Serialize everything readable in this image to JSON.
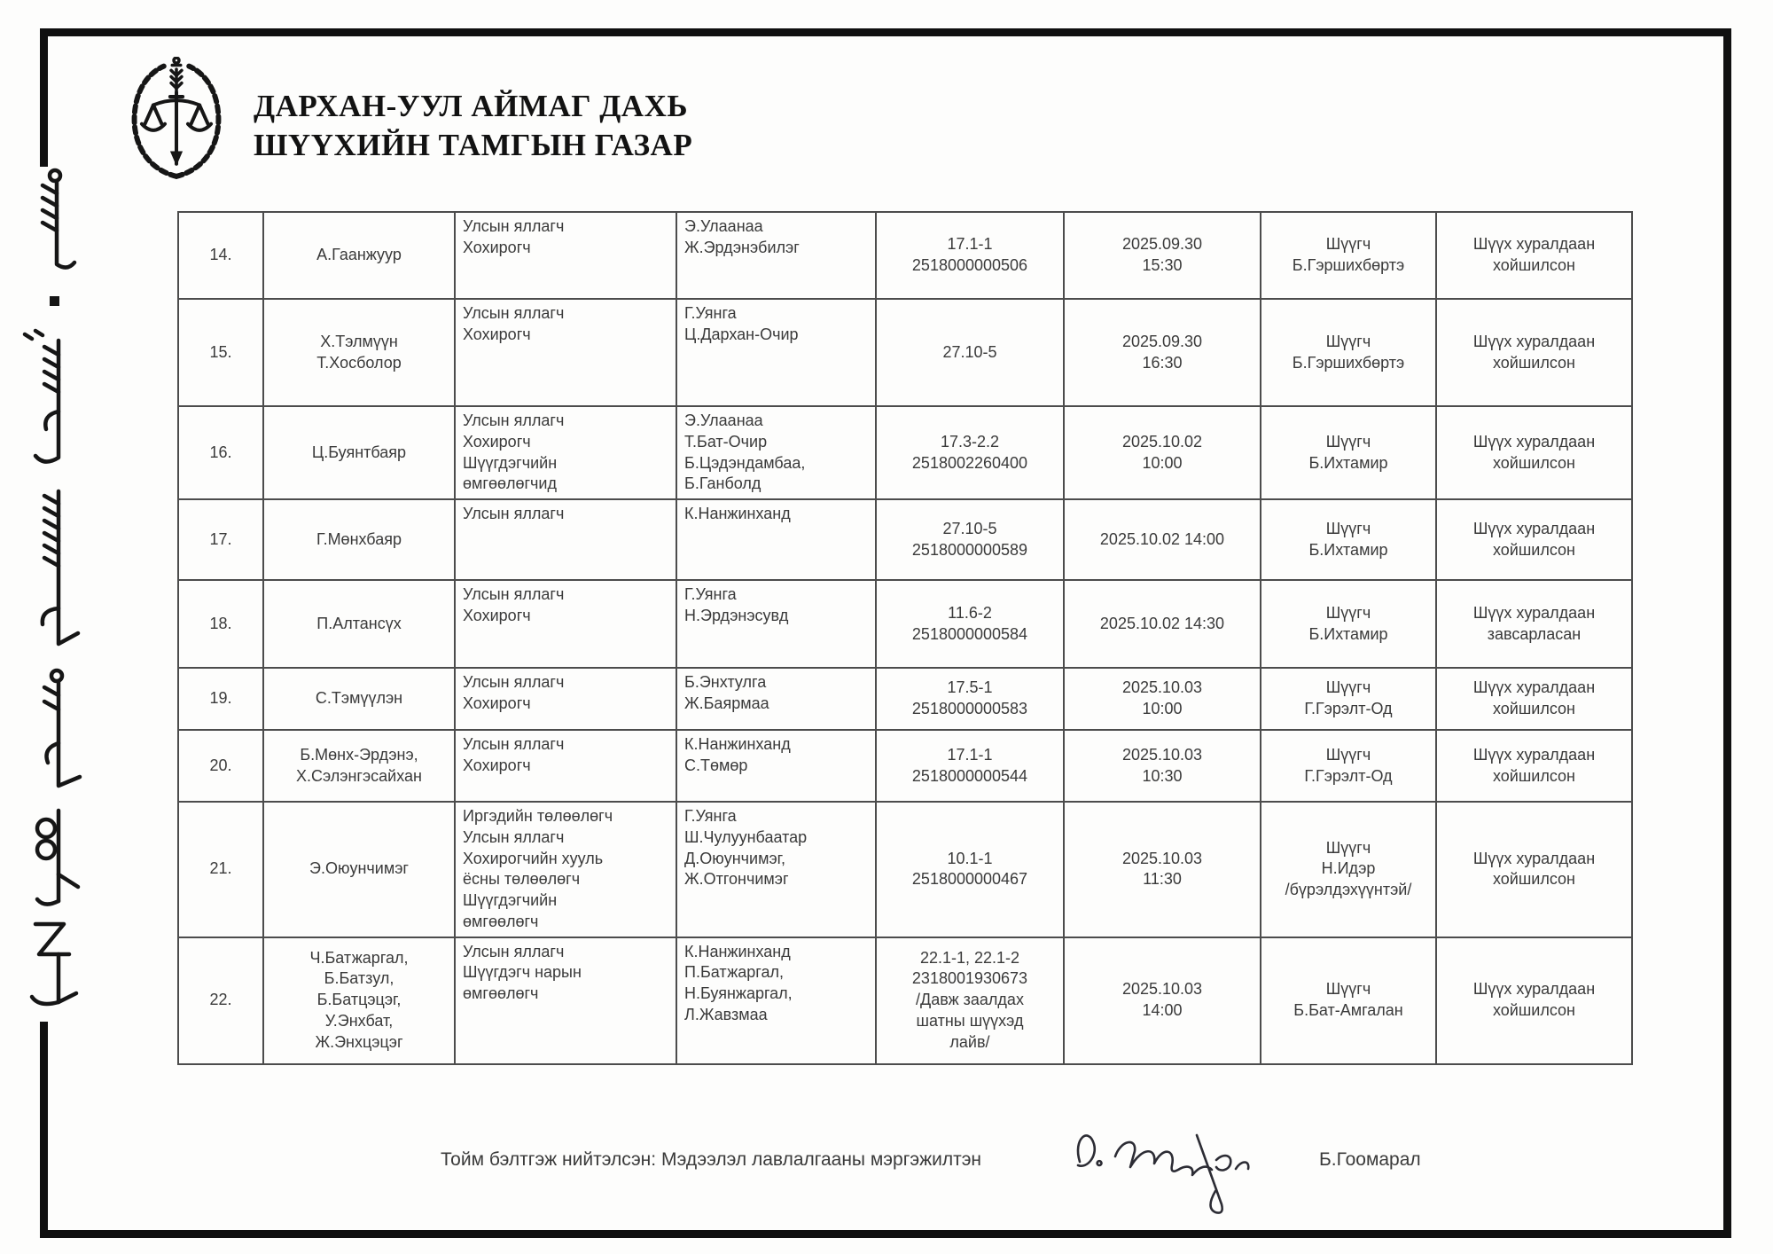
{
  "document": {
    "organization": {
      "line1": "ДАРХАН-УУЛ АЙМАГ ДАХЬ",
      "line2": "ШҮҮХИЙН ТАМГЫН ГАЗАР"
    }
  },
  "table": {
    "rows": [
      {
        "no": "14.",
        "defendants": "А.Гаанжуур",
        "roles": "Улсын яллагч\nХохирогч",
        "participants": "Э.Улаанаа\nЖ.Эрдэнэбилэг",
        "case_info": "17.1-1\n2518000000506",
        "datetime": "2025.09.30\n15:30",
        "judge": "Шүүгч\nБ.Гэршихбөртэ",
        "result": "Шүүх хуралдаан\nхойшилсон"
      },
      {
        "no": "15.",
        "defendants": "Х.Тэлмүүн\nТ.Хосболор",
        "roles": "Улсын яллагч\nХохирогч",
        "participants": "Г.Уянга\nЦ.Дархан-Очир",
        "case_info": "27.10-5",
        "datetime": "2025.09.30\n16:30",
        "judge": "Шүүгч\nБ.Гэршихбөртэ",
        "result": "Шүүх хуралдаан\nхойшилсон"
      },
      {
        "no": "16.",
        "defendants": "Ц.Буянтбаяр",
        "roles": "Улсын яллагч\nХохирогч\nШүүгдэгчийн\nөмгөөлөгчид",
        "participants": "Э.Улаанаа\nТ.Бат-Очир\nБ.Цэдэндамбаа,\nБ.Ганболд",
        "case_info": "17.3-2.2\n2518002260400",
        "datetime": "2025.10.02\n10:00",
        "judge": "Шүүгч\nБ.Ихтамир",
        "result": "Шүүх хуралдаан\nхойшилсон"
      },
      {
        "no": "17.",
        "defendants": "Г.Мөнхбаяр",
        "roles": "Улсын яллагч",
        "participants": "К.Нанжинханд",
        "case_info": "27.10-5\n2518000000589",
        "datetime": "2025.10.02 14:00",
        "judge": "Шүүгч\nБ.Ихтамир",
        "result": "Шүүх хуралдаан\nхойшилсон"
      },
      {
        "no": "18.",
        "defendants": "П.Алтансүх",
        "roles": "Улсын яллагч\nХохирогч",
        "participants": "Г.Уянга\nН.Эрдэнэсувд",
        "case_info": "11.6-2\n2518000000584",
        "datetime": "2025.10.02 14:30",
        "judge": "Шүүгч\nБ.Ихтамир",
        "result": "Шүүх хуралдаан\nзавсарласан"
      },
      {
        "no": "19.",
        "defendants": "С.Тэмүүлэн",
        "roles": "Улсын яллагч\nХохирогч",
        "participants": "Б.Энхтулга\nЖ.Баярмаа",
        "case_info": "17.5-1\n2518000000583",
        "datetime": "2025.10.03\n10:00",
        "judge": "Шүүгч\nГ.Гэрэлт-Од",
        "result": "Шүүх хуралдаан\nхойшилсон"
      },
      {
        "no": "20.",
        "defendants": "Б.Мөнх-Эрдэнэ,\nХ.Сэлэнгэсайхан",
        "roles": "Улсын яллагч\nХохирогч",
        "participants": "К.Нанжинханд\nС.Төмөр",
        "case_info": "17.1-1\n2518000000544",
        "datetime": "2025.10.03\n10:30",
        "judge": "Шүүгч\nГ.Гэрэлт-Од",
        "result": "Шүүх хуралдаан\nхойшилсон"
      },
      {
        "no": "21.",
        "defendants": "Э.Оюунчимэг",
        "roles": "Иргэдийн төлөөлөгч\nУлсын яллагч\nХохирогчийн хууль\nёсны төлөөлөгч\nШүүгдэгчийн\nөмгөөлөгч",
        "participants": "Г.Уянга\nШ.Чулуунбаатар\nД.Оюунчимэг,\nЖ.Отгончимэг",
        "case_info": "10.1-1\n2518000000467",
        "datetime": "2025.10.03\n11:30",
        "judge": "Шүүгч\nН.Идэр\n/бүрэлдэхүүнтэй/",
        "result": "Шүүх хуралдаан\nхойшилсон"
      },
      {
        "no": "22.",
        "defendants": "Ч.Батжаргал,\nБ.Батзул,\nБ.Батцэцэг,\nУ.Энхбат,\nЖ.Энхцэцэг",
        "roles": "Улсын яллагч\nШүүгдэгч нарын\nөмгөөлөгч",
        "participants": "К.Нанжинханд\nП.Батжаргал,\nН.Буянжаргал,\nЛ.Жавзмаа",
        "case_info": "22.1-1, 22.1-2\n2318001930673\n/Давж заалдах\nшатны шүүхэд\nлайв/",
        "datetime": "2025.10.03\n14:00",
        "judge": "Шүүгч\nБ.Бат-Амгалан",
        "result": "Шүүх хуралдаан\nхойшилсон"
      }
    ]
  },
  "footer": {
    "prepared_by_label": "Тойм бэлтгэж нийтэлсэн: Мэдээлэл лавлалгааны мэргэжилтэн",
    "signer_name": "Б.Гоомарал"
  },
  "colors": {
    "frame": "#101010",
    "table_border": "#4c4c4c",
    "ink": "#3a3a3a"
  }
}
